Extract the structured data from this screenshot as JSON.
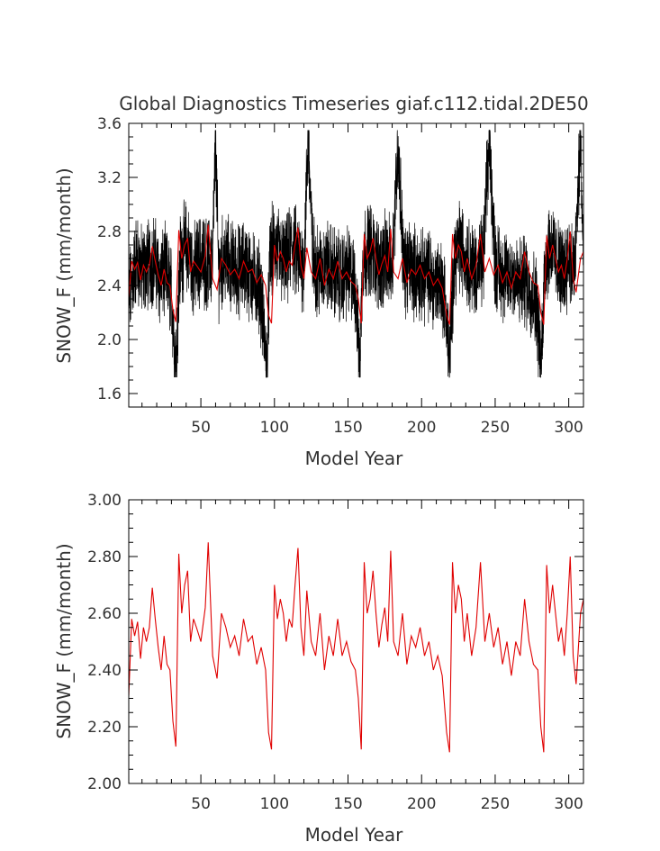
{
  "chart_data": [
    {
      "type": "line",
      "title": "Global Diagnostics Timeseries giaf.c112.tidal.2DE50",
      "xlabel": "Model Year",
      "ylabel": "SNOW_F (mm/month)",
      "xlim": [
        1,
        310
      ],
      "ylim": [
        1.5,
        3.6
      ],
      "x_ticks": [
        "50",
        "100",
        "150",
        "200",
        "250",
        "300"
      ],
      "y_ticks": [
        "1.6",
        "2.0",
        "2.4",
        "2.8",
        "3.2",
        "3.6"
      ],
      "grid": false,
      "series": [
        {
          "color": "#000000",
          "description_of_values": "monthly",
          "x": [
            1,
            6,
            10,
            14,
            18,
            22,
            26,
            30,
            33,
            36,
            40,
            45,
            50,
            55,
            58,
            60,
            62,
            66,
            70,
            75,
            80,
            85,
            90,
            95,
            97,
            100,
            104,
            108,
            112,
            116,
            120,
            123,
            126,
            130,
            135,
            140,
            145,
            150,
            155,
            158,
            160,
            164,
            168,
            172,
            176,
            180,
            184,
            188,
            192,
            196,
            200,
            204,
            208,
            212,
            216,
            219,
            222,
            226,
            230,
            234,
            238,
            242,
            246,
            250,
            254,
            258,
            262,
            266,
            270,
            274,
            278,
            281,
            284,
            288,
            292,
            296,
            300,
            304,
            308,
            310
          ],
          "values": [
            2.3,
            2.6,
            2.5,
            2.55,
            2.6,
            2.45,
            2.5,
            2.35,
            1.8,
            2.6,
            2.7,
            2.5,
            2.6,
            2.55,
            2.6,
            3.5,
            2.5,
            2.6,
            2.55,
            2.5,
            2.55,
            2.45,
            2.4,
            1.8,
            2.6,
            2.7,
            2.6,
            2.55,
            2.7,
            2.6,
            2.55,
            3.5,
            2.6,
            2.5,
            2.55,
            2.5,
            2.45,
            2.5,
            2.4,
            1.8,
            2.6,
            2.7,
            2.6,
            2.55,
            2.6,
            2.55,
            3.45,
            2.5,
            2.55,
            2.5,
            2.45,
            2.5,
            2.4,
            2.45,
            2.3,
            1.8,
            2.6,
            2.7,
            2.6,
            2.55,
            2.5,
            2.6,
            3.5,
            2.55,
            2.5,
            2.45,
            2.5,
            2.4,
            2.45,
            2.35,
            2.3,
            1.8,
            2.6,
            2.7,
            2.55,
            2.5,
            2.6,
            2.5,
            3.5,
            2.5
          ]
        },
        {
          "color": "#e00000",
          "description_of_values": "annual mean",
          "x": [
            1,
            3,
            5,
            7,
            9,
            11,
            13,
            15,
            17,
            19,
            21,
            23,
            25,
            27,
            29,
            31,
            33,
            35,
            37,
            39,
            41,
            43,
            45,
            47,
            50,
            53,
            55,
            58,
            61,
            64,
            67,
            70,
            73,
            76,
            79,
            82,
            85,
            88,
            91,
            94,
            96,
            98,
            100,
            102,
            104,
            106,
            108,
            110,
            112,
            114,
            116,
            118,
            120,
            122,
            125,
            128,
            131,
            134,
            137,
            140,
            143,
            146,
            149,
            152,
            155,
            157,
            159,
            161,
            163,
            165,
            167,
            169,
            171,
            173,
            175,
            177,
            179,
            181,
            184,
            187,
            190,
            193,
            196,
            199,
            202,
            205,
            208,
            211,
            214,
            217,
            219,
            221,
            223,
            225,
            227,
            229,
            231,
            234,
            237,
            240,
            243,
            246,
            249,
            252,
            255,
            258,
            261,
            264,
            267,
            270,
            273,
            276,
            279,
            281,
            283,
            285,
            287,
            289,
            291,
            293,
            295,
            297,
            299,
            301,
            303,
            305,
            308,
            310
          ],
          "values": [
            2.31,
            2.58,
            2.52,
            2.57,
            2.44,
            2.55,
            2.5,
            2.55,
            2.69,
            2.58,
            2.48,
            2.4,
            2.52,
            2.42,
            2.4,
            2.22,
            2.13,
            2.81,
            2.6,
            2.7,
            2.75,
            2.5,
            2.58,
            2.55,
            2.5,
            2.62,
            2.85,
            2.45,
            2.37,
            2.6,
            2.55,
            2.48,
            2.52,
            2.45,
            2.58,
            2.5,
            2.52,
            2.42,
            2.48,
            2.4,
            2.18,
            2.12,
            2.7,
            2.58,
            2.65,
            2.6,
            2.5,
            2.58,
            2.55,
            2.7,
            2.83,
            2.55,
            2.45,
            2.68,
            2.5,
            2.45,
            2.6,
            2.4,
            2.52,
            2.45,
            2.58,
            2.45,
            2.5,
            2.43,
            2.4,
            2.3,
            2.12,
            2.78,
            2.6,
            2.65,
            2.75,
            2.6,
            2.48,
            2.56,
            2.62,
            2.5,
            2.82,
            2.5,
            2.45,
            2.6,
            2.42,
            2.52,
            2.48,
            2.55,
            2.45,
            2.5,
            2.4,
            2.45,
            2.38,
            2.18,
            2.11,
            2.78,
            2.6,
            2.7,
            2.65,
            2.5,
            2.6,
            2.45,
            2.55,
            2.78,
            2.5,
            2.6,
            2.48,
            2.55,
            2.42,
            2.5,
            2.38,
            2.5,
            2.45,
            2.65,
            2.5,
            2.42,
            2.4,
            2.2,
            2.11,
            2.77,
            2.6,
            2.7,
            2.6,
            2.5,
            2.55,
            2.45,
            2.6,
            2.8,
            2.45,
            2.35,
            2.6,
            2.65
          ]
        }
      ]
    },
    {
      "type": "line",
      "title": "",
      "xlabel": "Model Year",
      "ylabel": "SNOW_F (mm/month)",
      "xlim": [
        1,
        310
      ],
      "ylim": [
        2.0,
        3.0
      ],
      "x_ticks": [
        "50",
        "100",
        "150",
        "200",
        "250",
        "300"
      ],
      "y_ticks": [
        "2.00",
        "2.20",
        "2.40",
        "2.60",
        "2.80",
        "3.00"
      ],
      "grid": false,
      "series": [
        {
          "color": "#e00000",
          "description_of_values": "annual mean",
          "x": [
            1,
            3,
            5,
            7,
            9,
            11,
            13,
            15,
            17,
            19,
            21,
            23,
            25,
            27,
            29,
            31,
            33,
            35,
            37,
            39,
            41,
            43,
            45,
            47,
            50,
            53,
            55,
            58,
            61,
            64,
            67,
            70,
            73,
            76,
            79,
            82,
            85,
            88,
            91,
            94,
            96,
            98,
            100,
            102,
            104,
            106,
            108,
            110,
            112,
            114,
            116,
            118,
            120,
            122,
            125,
            128,
            131,
            134,
            137,
            140,
            143,
            146,
            149,
            152,
            155,
            157,
            159,
            161,
            163,
            165,
            167,
            169,
            171,
            173,
            175,
            177,
            179,
            181,
            184,
            187,
            190,
            193,
            196,
            199,
            202,
            205,
            208,
            211,
            214,
            217,
            219,
            221,
            223,
            225,
            227,
            229,
            231,
            234,
            237,
            240,
            243,
            246,
            249,
            252,
            255,
            258,
            261,
            264,
            267,
            270,
            273,
            276,
            279,
            281,
            283,
            285,
            287,
            289,
            291,
            293,
            295,
            297,
            299,
            301,
            303,
            305,
            308,
            310
          ],
          "values": [
            2.31,
            2.58,
            2.52,
            2.57,
            2.44,
            2.55,
            2.5,
            2.55,
            2.69,
            2.58,
            2.48,
            2.4,
            2.52,
            2.42,
            2.4,
            2.22,
            2.13,
            2.81,
            2.6,
            2.7,
            2.75,
            2.5,
            2.58,
            2.55,
            2.5,
            2.62,
            2.85,
            2.45,
            2.37,
            2.6,
            2.55,
            2.48,
            2.52,
            2.45,
            2.58,
            2.5,
            2.52,
            2.42,
            2.48,
            2.4,
            2.18,
            2.12,
            2.7,
            2.58,
            2.65,
            2.6,
            2.5,
            2.58,
            2.55,
            2.7,
            2.83,
            2.55,
            2.45,
            2.68,
            2.5,
            2.45,
            2.6,
            2.4,
            2.52,
            2.45,
            2.58,
            2.45,
            2.5,
            2.43,
            2.4,
            2.3,
            2.12,
            2.78,
            2.6,
            2.65,
            2.75,
            2.6,
            2.48,
            2.56,
            2.62,
            2.5,
            2.82,
            2.5,
            2.45,
            2.6,
            2.42,
            2.52,
            2.48,
            2.55,
            2.45,
            2.5,
            2.4,
            2.45,
            2.38,
            2.18,
            2.11,
            2.78,
            2.6,
            2.7,
            2.65,
            2.5,
            2.6,
            2.45,
            2.55,
            2.78,
            2.5,
            2.6,
            2.48,
            2.55,
            2.42,
            2.5,
            2.38,
            2.5,
            2.45,
            2.65,
            2.5,
            2.42,
            2.4,
            2.2,
            2.11,
            2.77,
            2.6,
            2.7,
            2.6,
            2.5,
            2.55,
            2.45,
            2.6,
            2.8,
            2.45,
            2.35,
            2.6,
            2.65
          ]
        }
      ]
    }
  ]
}
